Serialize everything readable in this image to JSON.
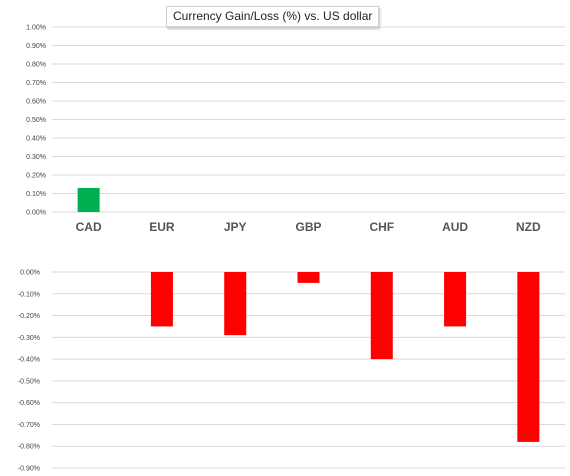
{
  "title": "Currency  Gain/Loss (%) vs. US dollar",
  "colors": {
    "gain": "#00b050",
    "loss": "#ff0000",
    "grid": "#d9d9d9"
  },
  "chart_data": {
    "type": "bar",
    "title": "Currency  Gain/Loss (%) vs. US dollar",
    "categories": [
      "CAD",
      "EUR",
      "JPY",
      "GBP",
      "CHF",
      "AUD",
      "NZD"
    ],
    "values": [
      0.13,
      -0.25,
      -0.29,
      -0.05,
      -0.4,
      -0.25,
      -0.78
    ],
    "unit": "%",
    "panels": [
      {
        "name": "gains",
        "ylim": [
          0,
          1.0
        ],
        "ticks": [
          "1.00%",
          "0.90%",
          "0.80%",
          "0.70%",
          "0.60%",
          "0.50%",
          "0.40%",
          "0.30%",
          "0.20%",
          "0.10%",
          "0.00%"
        ]
      },
      {
        "name": "losses",
        "ylim": [
          -0.9,
          0
        ],
        "ticks": [
          "0.00%",
          "-0.10%",
          "-0.20%",
          "-0.30%",
          "-0.40%",
          "-0.50%",
          "-0.60%",
          "-0.70%",
          "-0.80%",
          "-0.90%"
        ]
      }
    ],
    "grid": true,
    "legend": "none"
  }
}
